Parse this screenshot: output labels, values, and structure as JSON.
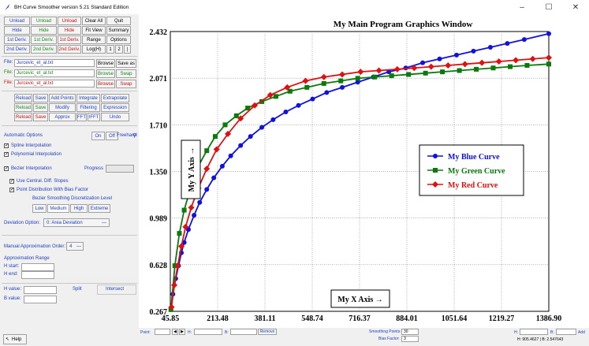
{
  "window": {
    "title": "BH Curve Smoother version 5.21 Standard Edition",
    "minimize": "–",
    "maximize": "☐",
    "close": "✕"
  },
  "toolbar": {
    "row1": [
      "Unload",
      "Unload",
      "Unload",
      "Clear All",
      "Quit"
    ],
    "row2": [
      "Hide",
      "Hide",
      "Hide",
      "Fit View",
      "Summary"
    ],
    "row3": [
      "1st Deriv.",
      "1st Deriv.",
      "1st Deriv.",
      "Range",
      "Options"
    ],
    "row4": [
      "2nd Deriv.",
      "2nd Deriv.",
      "2nd Deriv.",
      "Log(H)",
      "1",
      "2",
      "|"
    ]
  },
  "files": {
    "label": "File:",
    "blue_file": "Jurcevic_et_al.txt",
    "green_file": "Jurcevic_et_al.txt",
    "red_file": "Jurcevic_et_al.txt",
    "browse": "Browse",
    "save_as": "Save as",
    "swap": "Swap"
  },
  "actions": {
    "row1": [
      "Reload",
      "Save",
      "Add Points",
      "Integrate",
      "Extrapolate"
    ],
    "row2": [
      "Reload",
      "Save",
      "Modify",
      "Filtering",
      "Expression"
    ],
    "row3": [
      "Reload",
      "Save",
      "Approx",
      "FFT",
      "IFFT",
      "Undo"
    ]
  },
  "options": {
    "automatic_options": "Automatic Options",
    "on": "On",
    "off": "Off",
    "freehand": "Freehand",
    "spline": "Spline Interpolation",
    "polynomial": "Polynomial Interpolation",
    "bezier": "Bezier Interpolation",
    "progress": "Progress",
    "central_diff": "Use Central. Diff. Slopes",
    "point_distribution": "Point Distribution With Bias Factor",
    "bezier_level": "Bezier Smoothing Discretization Level",
    "levels": [
      "Low",
      "Medium",
      "High",
      "Extreme"
    ],
    "deviation_label": "Deviation Option:",
    "deviation_value": "0: Area Deviation",
    "manual_order_label": "Manual Approximation Order:",
    "manual_order_value": "4",
    "approx_range": "Approximation Range",
    "h_start": "H start:",
    "h_end": "H end:",
    "h_value": "H value:",
    "b_value": "B value:",
    "split": "Split",
    "intersect": "Intersect",
    "help": "Help",
    "help_icon": "arrow-icon"
  },
  "bottom": {
    "point": "Point:",
    "h": "H:",
    "b": "B:",
    "remove": "Remove",
    "smoothing_points_label": "Smoothing Points:",
    "smoothing_points_value": "30",
    "bias_factor_label": "Bias Factor:",
    "bias_factor_value": "3",
    "h2": "H:",
    "b2": "B:",
    "add": "Add",
    "coords": "H: 905.4627 | B: 2.547643"
  },
  "chart_data": {
    "type": "line",
    "title": "My Main Program Graphics Window",
    "xlabel": "My X Axis →",
    "ylabel": "My Y Axis →",
    "x_ticks": [
      "45.85",
      "213.48",
      "381.11",
      "548.74",
      "716.37",
      "884.01",
      "1051.64",
      "1219.27",
      "1386.90"
    ],
    "y_ticks": [
      "0.267",
      "0.628",
      "0.989",
      "1.350",
      "1.710",
      "2.071",
      "2.432"
    ],
    "xlim": [
      45.85,
      1386.9
    ],
    "ylim": [
      0.267,
      2.432
    ],
    "legend_position": "right",
    "series": [
      {
        "name": "My Blue Curve",
        "color": "#1010e0",
        "marker": "circle",
        "points": [
          [
            55,
            0.4
          ],
          [
            65,
            0.52
          ],
          [
            75,
            0.62
          ],
          [
            85,
            0.72
          ],
          [
            95,
            0.8
          ],
          [
            110,
            0.9
          ],
          [
            130,
            1.01
          ],
          [
            150,
            1.11
          ],
          [
            175,
            1.21
          ],
          [
            200,
            1.3
          ],
          [
            230,
            1.39
          ],
          [
            260,
            1.47
          ],
          [
            295,
            1.55
          ],
          [
            330,
            1.62
          ],
          [
            370,
            1.69
          ],
          [
            410,
            1.75
          ],
          [
            455,
            1.81
          ],
          [
            500,
            1.86
          ],
          [
            550,
            1.91
          ],
          [
            600,
            1.96
          ],
          [
            655,
            2.0
          ],
          [
            710,
            2.04
          ],
          [
            765,
            2.08
          ],
          [
            820,
            2.12
          ],
          [
            880,
            2.15
          ],
          [
            940,
            2.19
          ],
          [
            1000,
            2.22
          ],
          [
            1060,
            2.25
          ],
          [
            1120,
            2.28
          ],
          [
            1180,
            2.31
          ],
          [
            1240,
            2.34
          ],
          [
            1300,
            2.37
          ],
          [
            1386.9,
            2.415
          ]
        ]
      },
      {
        "name": "My Green Curve",
        "color": "#0a7a0a",
        "marker": "square",
        "points": [
          [
            48,
            0.28
          ],
          [
            62,
            0.62
          ],
          [
            78,
            0.87
          ],
          [
            95,
            1.05
          ],
          [
            120,
            1.24
          ],
          [
            145,
            1.39
          ],
          [
            175,
            1.51
          ],
          [
            205,
            1.62
          ],
          [
            240,
            1.71
          ],
          [
            280,
            1.78
          ],
          [
            320,
            1.84
          ],
          [
            370,
            1.89
          ],
          [
            420,
            1.93
          ],
          [
            470,
            1.97
          ],
          [
            530,
            2.0
          ],
          [
            590,
            2.03
          ],
          [
            650,
            2.05
          ],
          [
            710,
            2.07
          ],
          [
            770,
            2.08
          ],
          [
            830,
            2.09
          ],
          [
            890,
            2.1
          ],
          [
            950,
            2.11
          ],
          [
            1010,
            2.12
          ],
          [
            1070,
            2.13
          ],
          [
            1130,
            2.14
          ],
          [
            1190,
            2.15
          ],
          [
            1250,
            2.16
          ],
          [
            1310,
            2.17
          ],
          [
            1386.9,
            2.18
          ]
        ]
      },
      {
        "name": "My Red Curve",
        "color": "#e01010",
        "marker": "diamond",
        "points": [
          [
            50,
            0.3
          ],
          [
            60,
            0.47
          ],
          [
            72,
            0.62
          ],
          [
            85,
            0.77
          ],
          [
            100,
            0.92
          ],
          [
            120,
            1.07
          ],
          [
            145,
            1.22
          ],
          [
            175,
            1.37
          ],
          [
            210,
            1.52
          ],
          [
            250,
            1.64
          ],
          [
            295,
            1.76
          ],
          [
            345,
            1.86
          ],
          [
            400,
            1.94
          ],
          [
            460,
            2.0
          ],
          [
            525,
            2.05
          ],
          [
            590,
            2.08
          ],
          [
            655,
            2.1
          ],
          [
            720,
            2.12
          ],
          [
            785,
            2.13
          ],
          [
            850,
            2.14
          ],
          [
            910,
            2.15
          ],
          [
            970,
            2.16
          ],
          [
            1030,
            2.17
          ],
          [
            1090,
            2.18
          ],
          [
            1150,
            2.19
          ],
          [
            1210,
            2.2
          ],
          [
            1270,
            2.21
          ],
          [
            1330,
            2.22
          ],
          [
            1386.9,
            2.23
          ]
        ]
      }
    ]
  }
}
